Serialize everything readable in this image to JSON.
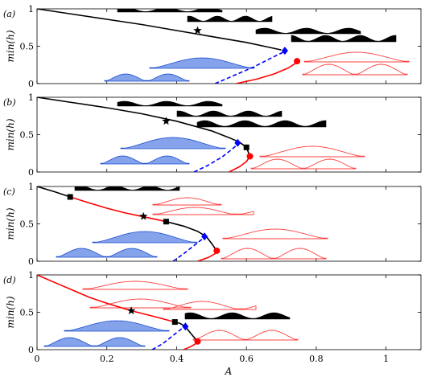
{
  "chart_data": {
    "type": "line",
    "xlabel": "A",
    "ylabel": "min(h)",
    "xlim": [
      0,
      1.1
    ],
    "ylim": [
      0,
      1
    ],
    "x_ticks": [
      {
        "value": 0,
        "label": "0"
      },
      {
        "value": 0.2,
        "label": "0.2"
      },
      {
        "value": 0.4,
        "label": "0.4"
      },
      {
        "value": 0.6,
        "label": "0.6"
      },
      {
        "value": 0.8,
        "label": "0.8"
      },
      {
        "value": 1.0,
        "label": "1"
      }
    ],
    "y_ticks": [
      {
        "value": 0,
        "label": "0"
      },
      {
        "value": 0.5,
        "label": "0.5"
      },
      {
        "value": 1,
        "label": "1"
      }
    ],
    "colors": {
      "stable": "#000000",
      "unstable": "#ff0000",
      "branch": "#0000ff",
      "blue_fill": "#6f93e8",
      "red_profile": "#ff4040"
    },
    "panels": [
      {
        "label": "(a)",
        "series": [
          {
            "color": "#000000",
            "style": "solid",
            "x": [
              0,
              0.1,
              0.2,
              0.3,
              0.4,
              0.5,
              0.6,
              0.66,
              0.7
            ],
            "y": [
              1,
              0.93,
              0.86,
              0.79,
              0.71,
              0.63,
              0.55,
              0.49,
              0.45
            ]
          },
          {
            "color": "#0000ff",
            "style": "dashed",
            "x": [
              0.51,
              0.56,
              0.62,
              0.67,
              0.71
            ],
            "y": [
              0,
              0.1,
              0.22,
              0.34,
              0.43
            ]
          },
          {
            "color": "#ff0000",
            "style": "solid",
            "x": [
              0.57,
              0.63,
              0.68,
              0.72,
              0.74,
              0.745
            ],
            "y": [
              0,
              0.06,
              0.13,
              0.21,
              0.27,
              0.3
            ]
          }
        ],
        "markers": [
          {
            "shape": "star",
            "color": "#000000",
            "x": 0.46,
            "y": 0.71
          },
          {
            "shape": "diamond",
            "color": "#0000ff",
            "x": 0.71,
            "y": 0.44
          },
          {
            "shape": "circle",
            "color": "#ff0000",
            "x": 0.745,
            "y": 0.3
          }
        ]
      },
      {
        "label": "(b)",
        "series": [
          {
            "color": "#000000",
            "style": "solid",
            "x": [
              0,
              0.1,
              0.2,
              0.3,
              0.4,
              0.5,
              0.55,
              0.58,
              0.6
            ],
            "y": [
              1,
              0.93,
              0.86,
              0.78,
              0.68,
              0.55,
              0.46,
              0.4,
              0.33
            ]
          },
          {
            "color": "#0000ff",
            "style": "dashed",
            "x": [
              0.45,
              0.49,
              0.53,
              0.56,
              0.58
            ],
            "y": [
              0,
              0.09,
              0.2,
              0.31,
              0.39
            ]
          },
          {
            "color": "#ff0000",
            "style": "solid",
            "x": [
              0.55,
              0.58,
              0.6,
              0.61
            ],
            "y": [
              0,
              0.07,
              0.14,
              0.21
            ]
          },
          {
            "color": "#000000",
            "style": "solid",
            "x": [
              0.6,
              0.61
            ],
            "y": [
              0.33,
              0.21
            ]
          }
        ],
        "markers": [
          {
            "shape": "star",
            "color": "#000000",
            "x": 0.37,
            "y": 0.68
          },
          {
            "shape": "diamond",
            "color": "#0000ff",
            "x": 0.575,
            "y": 0.39
          },
          {
            "shape": "square",
            "color": "#000000",
            "x": 0.6,
            "y": 0.33
          },
          {
            "shape": "circle",
            "color": "#ff0000",
            "x": 0.61,
            "y": 0.21
          }
        ]
      },
      {
        "label": "(c)",
        "series": [
          {
            "color": "#000000",
            "style": "solid",
            "x": [
              0,
              0.05,
              0.095
            ],
            "y": [
              1,
              0.93,
              0.86
            ]
          },
          {
            "color": "#ff0000",
            "style": "solid",
            "x": [
              0.095,
              0.15,
              0.2,
              0.25,
              0.3,
              0.37
            ],
            "y": [
              0.86,
              0.78,
              0.71,
              0.65,
              0.6,
              0.53
            ]
          },
          {
            "color": "#000000",
            "style": "solid",
            "x": [
              0.37,
              0.42,
              0.46,
              0.485
            ],
            "y": [
              0.53,
              0.47,
              0.4,
              0.33
            ]
          },
          {
            "color": "#0000ff",
            "style": "dashed",
            "x": [
              0.39,
              0.42,
              0.45,
              0.48
            ],
            "y": [
              0,
              0.1,
              0.21,
              0.32
            ]
          },
          {
            "color": "#ff0000",
            "style": "solid",
            "x": [
              0.46,
              0.49,
              0.51,
              0.515
            ],
            "y": [
              0,
              0.05,
              0.1,
              0.14
            ]
          },
          {
            "color": "#000000",
            "style": "solid",
            "x": [
              0.485,
              0.5,
              0.515
            ],
            "y": [
              0.33,
              0.24,
              0.14
            ]
          }
        ],
        "markers": [
          {
            "shape": "square",
            "color": "#000000",
            "x": 0.095,
            "y": 0.86
          },
          {
            "shape": "star",
            "color": "#000000",
            "x": 0.305,
            "y": 0.6
          },
          {
            "shape": "square",
            "color": "#000000",
            "x": 0.37,
            "y": 0.53
          },
          {
            "shape": "diamond",
            "color": "#0000ff",
            "x": 0.48,
            "y": 0.33
          },
          {
            "shape": "circle",
            "color": "#ff0000",
            "x": 0.515,
            "y": 0.14
          }
        ]
      },
      {
        "label": "(d)",
        "series": [
          {
            "color": "#ff0000",
            "style": "solid",
            "x": [
              0,
              0.05,
              0.1,
              0.15,
              0.2,
              0.27,
              0.33,
              0.395
            ],
            "y": [
              1,
              0.9,
              0.8,
              0.7,
              0.62,
              0.52,
              0.45,
              0.37
            ]
          },
          {
            "color": "#000000",
            "style": "solid",
            "x": [
              0.395,
              0.41,
              0.425
            ],
            "y": [
              0.37,
              0.35,
              0.31
            ]
          },
          {
            "color": "#0000ff",
            "style": "dashed",
            "x": [
              0.33,
              0.36,
              0.39,
              0.42
            ],
            "y": [
              0,
              0.08,
              0.19,
              0.3
            ]
          },
          {
            "color": "#ff0000",
            "style": "solid",
            "x": [
              0.42,
              0.44,
              0.455,
              0.46
            ],
            "y": [
              0,
              0.04,
              0.08,
              0.11
            ]
          },
          {
            "color": "#000000",
            "style": "solid",
            "x": [
              0.425,
              0.44,
              0.46
            ],
            "y": [
              0.31,
              0.22,
              0.11
            ]
          }
        ],
        "markers": [
          {
            "shape": "star",
            "color": "#000000",
            "x": 0.27,
            "y": 0.52
          },
          {
            "shape": "square",
            "color": "#000000",
            "x": 0.395,
            "y": 0.37
          },
          {
            "shape": "diamond",
            "color": "#0000ff",
            "x": 0.425,
            "y": 0.31
          },
          {
            "shape": "circle",
            "color": "#ff0000",
            "x": 0.46,
            "y": 0.11
          }
        ]
      }
    ]
  }
}
